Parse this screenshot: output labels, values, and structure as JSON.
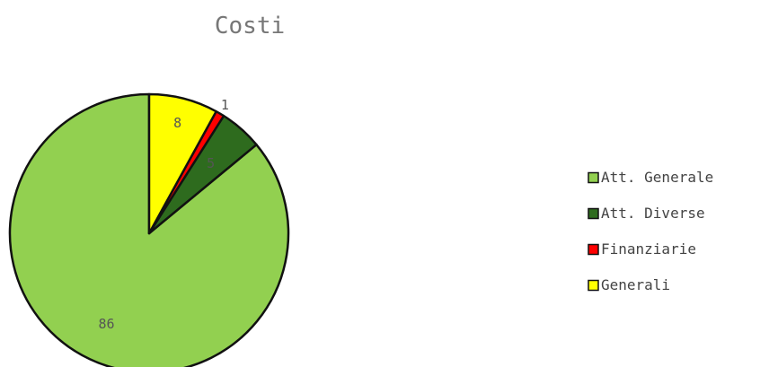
{
  "chart_data": {
    "type": "pie",
    "title": "Costi",
    "categories": [
      "Att. Generale",
      "Att. Diverse",
      "Finanziarie",
      "Generali"
    ],
    "values": [
      86,
      5,
      1,
      8
    ],
    "colors": [
      "#92d050",
      "#2e6b1e",
      "#ff0000",
      "#ffff00"
    ],
    "legend_position": "right",
    "data_labels": true
  }
}
